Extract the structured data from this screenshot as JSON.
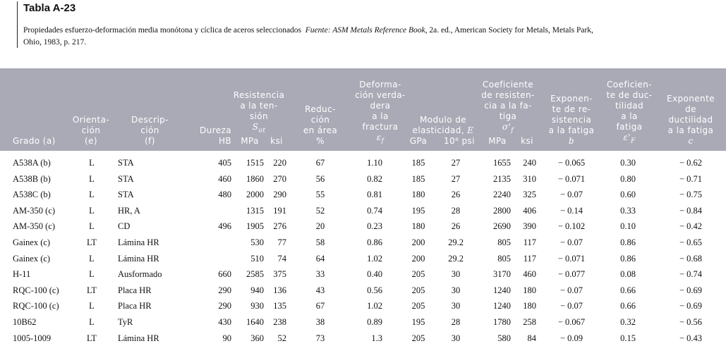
{
  "table_title": "Tabla A-23",
  "caption": {
    "text": "Propiedades esfuerzo-deformación media monótona y cíclica de aceros seleccionados",
    "source": "Fuente: ASM Metals Reference Book,",
    "source_rest": " 2a. ed., American Society for Metals, Metals Park,",
    "source_line2": "Ohio, 1983, p. 217."
  },
  "header": {
    "grado": [
      "Grado (a)"
    ],
    "orient": [
      "Orienta-",
      "ción",
      "(e)"
    ],
    "descrip": [
      "Descrip-",
      "ción",
      "(f)"
    ],
    "dureza": [
      "Dureza",
      "HB"
    ],
    "resist": [
      "Resistencia",
      "a la ten-",
      "sión",
      "S_ut"
    ],
    "mpa": "MPa",
    "ksi": "ksi",
    "reduc": [
      "Reduc-",
      "ción",
      "en área",
      "%"
    ],
    "deform": [
      "Deforma-",
      "ción verda-",
      "dera",
      "a la",
      "fractura",
      "ε_f"
    ],
    "modulo": [
      "Modulo de",
      "elasticidad, E"
    ],
    "gpa": "GPa",
    "psi": "10⁶ psi",
    "coef_res": [
      "Coeficiente",
      "de resisten-",
      "cia a la fa-",
      "tiga",
      "σ'_f"
    ],
    "mpa2": "MPa",
    "ksi2": "ksi",
    "exp_res": [
      "Exponen-",
      "te de re-",
      "sistencia",
      "a la fatiga",
      "b"
    ],
    "coef_duct": [
      "Coeficien-",
      "te de duc-",
      "tilidad",
      "a la",
      "fatiga",
      "ε'_F"
    ],
    "exp_duct": [
      "Exponente",
      "de",
      "ductilidad",
      "a la fatiga",
      "c"
    ]
  },
  "rows": [
    {
      "grado": "A538A (b)",
      "orient": "L",
      "descrip": "STA",
      "dureza": "405",
      "mpa": "1515",
      "ksi": "220",
      "reduc": "67",
      "deform": "1.10",
      "gpa": "185",
      "psi": "27",
      "cmpa": "1655",
      "cksi": "240",
      "b": "− 0.065",
      "ef": "0.30",
      "c": "− 0.62"
    },
    {
      "grado": "A538B (b)",
      "orient": "L",
      "descrip": "STA",
      "dureza": "460",
      "mpa": "1860",
      "ksi": "270",
      "reduc": "56",
      "deform": "0.82",
      "gpa": "185",
      "psi": "27",
      "cmpa": "2135",
      "cksi": "310",
      "b": "− 0.071",
      "ef": "0.80",
      "c": "− 0.71"
    },
    {
      "grado": "A538C (b)",
      "orient": "L",
      "descrip": "STA",
      "dureza": "480",
      "mpa": "2000",
      "ksi": "290",
      "reduc": "55",
      "deform": "0.81",
      "gpa": "180",
      "psi": "26",
      "cmpa": "2240",
      "cksi": "325",
      "b": "− 0.07",
      "ef": "0.60",
      "c": "− 0.75"
    },
    {
      "grado": "AM-350 (c)",
      "orient": "L",
      "descrip": "HR, A",
      "dureza": "",
      "mpa": "1315",
      "ksi": "191",
      "reduc": "52",
      "deform": "0.74",
      "gpa": "195",
      "psi": "28",
      "cmpa": "2800",
      "cksi": "406",
      "b": "− 0.14",
      "ef": "0.33",
      "c": "− 0.84"
    },
    {
      "grado": "AM-350 (c)",
      "orient": "L",
      "descrip": "CD",
      "dureza": "496",
      "mpa": "1905",
      "ksi": "276",
      "reduc": "20",
      "deform": "0.23",
      "gpa": "180",
      "psi": "26",
      "cmpa": "2690",
      "cksi": "390",
      "b": "− 0.102",
      "ef": "0.10",
      "c": "− 0.42"
    },
    {
      "grado": "Gainex (c)",
      "orient": "LT",
      "descrip": "Lámina HR",
      "dureza": "",
      "mpa": "530",
      "ksi": "77",
      "reduc": "58",
      "deform": "0.86",
      "gpa": "200",
      "psi": "29.2",
      "cmpa": "805",
      "cksi": "117",
      "b": "− 0.07",
      "ef": "0.86",
      "c": "− 0.65"
    },
    {
      "grado": "Gainex (c)",
      "orient": "L",
      "descrip": "Lámina HR",
      "dureza": "",
      "mpa": "510",
      "ksi": "74",
      "reduc": "64",
      "deform": "1.02",
      "gpa": "200",
      "psi": "29.2",
      "cmpa": "805",
      "cksi": "117",
      "b": "− 0.071",
      "ef": "0.86",
      "c": "− 0.68"
    },
    {
      "grado": "H-11",
      "orient": "L",
      "descrip": "Ausformado",
      "dureza": "660",
      "mpa": "2585",
      "ksi": "375",
      "reduc": "33",
      "deform": "0.40",
      "gpa": "205",
      "psi": "30",
      "cmpa": "3170",
      "cksi": "460",
      "b": "− 0.077",
      "ef": "0.08",
      "c": "− 0.74"
    },
    {
      "grado": "RQC-100 (c)",
      "orient": "LT",
      "descrip": "Placa HR",
      "dureza": "290",
      "mpa": "940",
      "ksi": "136",
      "reduc": "43",
      "deform": "0.56",
      "gpa": "205",
      "psi": "30",
      "cmpa": "1240",
      "cksi": "180",
      "b": "− 0.07",
      "ef": "0.66",
      "c": "− 0.69"
    },
    {
      "grado": "RQC-100 (c)",
      "orient": "L",
      "descrip": "Placa HR",
      "dureza": "290",
      "mpa": "930",
      "ksi": "135",
      "reduc": "67",
      "deform": "1.02",
      "gpa": "205",
      "psi": "30",
      "cmpa": "1240",
      "cksi": "180",
      "b": "− 0.07",
      "ef": "0.66",
      "c": "− 0.69"
    },
    {
      "grado": "10B62",
      "orient": "L",
      "descrip": "TyR",
      "dureza": "430",
      "mpa": "1640",
      "ksi": "238",
      "reduc": "38",
      "deform": "0.89",
      "gpa": "195",
      "psi": "28",
      "cmpa": "1780",
      "cksi": "258",
      "b": "− 0.067",
      "ef": "0.32",
      "c": "− 0.56"
    },
    {
      "grado": "1005-1009",
      "orient": "LT",
      "descrip": "Lámina HR",
      "dureza": "90",
      "mpa": "360",
      "ksi": "52",
      "reduc": "73",
      "deform": "1.3",
      "gpa": "205",
      "psi": "30",
      "cmpa": "580",
      "cksi": "84",
      "b": "− 0.09",
      "ef": "0.15",
      "c": "− 0.43"
    }
  ]
}
